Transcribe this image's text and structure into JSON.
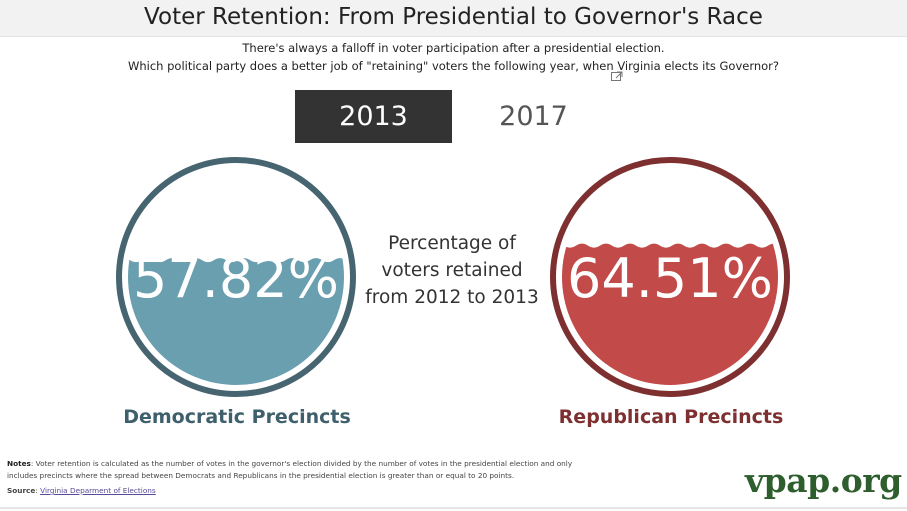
{
  "header": {
    "title": "Voter Retention: From Presidential to Governor's Race",
    "subtitle_line1": "There's always a falloff in voter participation after a presidential election.",
    "subtitle_line2": "Which political party does a better job of \"retaining\" voters the following year, when Virginia elects its Governor?"
  },
  "tabs": [
    {
      "label": "2013",
      "selected": true
    },
    {
      "label": "2017",
      "selected": false
    }
  ],
  "gauges": {
    "democratic": {
      "value_label": "57.82%",
      "fill_fraction": 0.5782,
      "label": "Democratic Precincts",
      "color": "#6a9fb0",
      "ring_color": "#466570"
    },
    "republican": {
      "value_label": "64.51%",
      "fill_fraction": 0.6451,
      "label": "Republican Precincts",
      "color": "#c24a48",
      "ring_color": "#7e3030"
    }
  },
  "center": {
    "line1": "Percentage of",
    "line2": "voters retained",
    "line3": "from 2012 to 2013"
  },
  "notes": {
    "label": "Notes",
    "text": ": Voter retention is calculated as the number of votes in the governor's election divided by the number of votes in the presidential election and only includes precincts where the spread between Democrats and Republicans in the presidential election is greater than or equal to 20 points.",
    "source_label": "Source",
    "source_link": "Virginia Deparment of Elections"
  },
  "brand": "vpap.org",
  "icons": {
    "expand": "expand-icon"
  }
}
